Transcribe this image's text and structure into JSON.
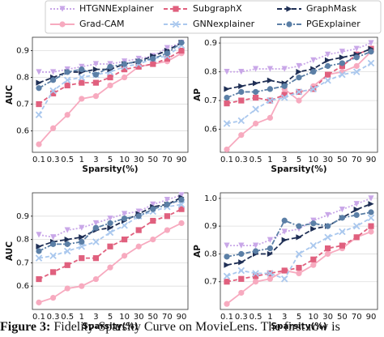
{
  "chart_data": [
    {
      "type": "line",
      "xlabel": "Sparsity(%)",
      "ylabel": "AUC",
      "categories": [
        "0.1",
        "0.3",
        "0.5",
        "1",
        "3",
        "5",
        "10",
        "30",
        "50",
        "70",
        "90"
      ],
      "ylim": [
        0.52,
        0.95
      ],
      "yticks": [
        0.6,
        0.7,
        0.8,
        0.9
      ],
      "grid": true,
      "series": [
        {
          "name": "HTGNNExplainer",
          "color": "#c9a7e8",
          "values": [
            0.82,
            0.82,
            0.83,
            0.84,
            0.85,
            0.85,
            0.86,
            0.87,
            0.88,
            0.91,
            0.93
          ]
        },
        {
          "name": "Grad-CAM",
          "color": "#f7aabf",
          "values": [
            0.55,
            0.61,
            0.66,
            0.72,
            0.73,
            0.77,
            0.8,
            0.84,
            0.85,
            0.86,
            0.89
          ]
        },
        {
          "name": "SubgraphX",
          "color": "#e0607e",
          "values": [
            0.7,
            0.74,
            0.77,
            0.78,
            0.78,
            0.8,
            0.83,
            0.84,
            0.85,
            0.87,
            0.9
          ]
        },
        {
          "name": "GNNexplainer",
          "color": "#aac8ee",
          "values": [
            0.66,
            0.75,
            0.79,
            0.8,
            0.81,
            0.82,
            0.84,
            0.85,
            0.87,
            0.88,
            0.92
          ]
        },
        {
          "name": "GraphMask",
          "color": "#1f2f55",
          "values": [
            0.78,
            0.8,
            0.82,
            0.82,
            0.83,
            0.83,
            0.85,
            0.86,
            0.88,
            0.9,
            0.93
          ]
        },
        {
          "name": "PGExplainer",
          "color": "#5b7fa6",
          "values": [
            0.76,
            0.79,
            0.82,
            0.83,
            0.81,
            0.84,
            0.85,
            0.86,
            0.87,
            0.89,
            0.93
          ]
        }
      ]
    },
    {
      "type": "line",
      "xlabel": "Sparsity(%)",
      "ylabel": "AP",
      "categories": [
        "0.1",
        "0.3",
        "0.5",
        "1",
        "3",
        "5",
        "10",
        "30",
        "50",
        "70",
        "90"
      ],
      "ylim": [
        0.52,
        0.92
      ],
      "yticks": [
        0.6,
        0.7,
        0.8,
        0.9
      ],
      "grid": true,
      "series": [
        {
          "name": "HTGNNExplainer",
          "color": "#c9a7e8",
          "values": [
            0.8,
            0.8,
            0.81,
            0.81,
            0.81,
            0.82,
            0.84,
            0.86,
            0.87,
            0.88,
            0.9
          ]
        },
        {
          "name": "Grad-CAM",
          "color": "#f7aabf",
          "values": [
            0.53,
            0.58,
            0.62,
            0.64,
            0.74,
            0.7,
            0.75,
            0.79,
            0.8,
            0.82,
            0.87
          ]
        },
        {
          "name": "SubgraphX",
          "color": "#e0607e",
          "values": [
            0.69,
            0.7,
            0.71,
            0.7,
            0.72,
            0.73,
            0.74,
            0.79,
            0.82,
            0.86,
            0.88
          ]
        },
        {
          "name": "GNNexplainer",
          "color": "#aac8ee",
          "values": [
            0.62,
            0.63,
            0.67,
            0.7,
            0.71,
            0.73,
            0.74,
            0.77,
            0.79,
            0.8,
            0.83
          ]
        },
        {
          "name": "GraphMask",
          "color": "#1f2f55",
          "values": [
            0.74,
            0.75,
            0.76,
            0.77,
            0.76,
            0.8,
            0.81,
            0.84,
            0.85,
            0.86,
            0.88
          ]
        },
        {
          "name": "PGExplainer",
          "color": "#5b7fa6",
          "values": [
            0.71,
            0.73,
            0.73,
            0.74,
            0.75,
            0.78,
            0.8,
            0.82,
            0.83,
            0.85,
            0.87
          ]
        }
      ]
    },
    {
      "type": "line",
      "xlabel": "Sparsity(%)",
      "ylabel": "AUC",
      "categories": [
        "0.1",
        "0.3",
        "0.5",
        "1",
        "3",
        "5",
        "10",
        "30",
        "50",
        "70",
        "90"
      ],
      "ylim": [
        0.5,
        1.0
      ],
      "yticks": [
        0.6,
        0.7,
        0.8,
        0.9
      ],
      "grid": true,
      "series": [
        {
          "name": "HTGNNExplainer",
          "color": "#c9a7e8",
          "values": [
            0.82,
            0.81,
            0.84,
            0.85,
            0.87,
            0.89,
            0.91,
            0.92,
            0.95,
            0.97,
            0.99
          ]
        },
        {
          "name": "Grad-CAM",
          "color": "#f7aabf",
          "values": [
            0.53,
            0.55,
            0.59,
            0.6,
            0.63,
            0.68,
            0.73,
            0.77,
            0.8,
            0.84,
            0.87
          ]
        },
        {
          "name": "SubgraphX",
          "color": "#e0607e",
          "values": [
            0.63,
            0.66,
            0.69,
            0.72,
            0.72,
            0.77,
            0.8,
            0.84,
            0.88,
            0.9,
            0.93
          ]
        },
        {
          "name": "GNNexplainer",
          "color": "#aac8ee",
          "values": [
            0.72,
            0.73,
            0.75,
            0.77,
            0.79,
            0.83,
            0.86,
            0.9,
            0.92,
            0.94,
            0.95
          ]
        },
        {
          "name": "GraphMask",
          "color": "#1f2f55",
          "values": [
            0.77,
            0.79,
            0.8,
            0.81,
            0.84,
            0.85,
            0.88,
            0.91,
            0.94,
            0.95,
            0.98
          ]
        },
        {
          "name": "PGExplainer",
          "color": "#5b7fa6",
          "values": [
            0.75,
            0.78,
            0.78,
            0.79,
            0.85,
            0.87,
            0.89,
            0.9,
            0.93,
            0.95,
            0.97
          ]
        }
      ]
    },
    {
      "type": "line",
      "xlabel": "Sparsity(%)",
      "ylabel": "AP",
      "categories": [
        "0.1",
        "0.3",
        "0.5",
        "1",
        "3",
        "5",
        "10",
        "30",
        "50",
        "70",
        "90"
      ],
      "ylim": [
        0.6,
        1.02
      ],
      "yticks": [
        0.7,
        0.8,
        0.9,
        {
          "value": 1,
          "label": "1.0"
        }
      ],
      "grid": true,
      "series": [
        {
          "name": "HTGNNExplainer",
          "color": "#c9a7e8",
          "values": [
            0.83,
            0.83,
            0.83,
            0.85,
            0.88,
            0.89,
            0.92,
            0.94,
            0.96,
            0.98,
            1.0
          ]
        },
        {
          "name": "Grad-CAM",
          "color": "#f7aabf",
          "values": [
            0.62,
            0.66,
            0.7,
            0.71,
            0.74,
            0.73,
            0.76,
            0.8,
            0.82,
            0.86,
            0.88
          ]
        },
        {
          "name": "SubgraphX",
          "color": "#e0607e",
          "values": [
            0.7,
            0.71,
            0.72,
            0.73,
            0.74,
            0.75,
            0.78,
            0.82,
            0.83,
            0.86,
            0.9
          ]
        },
        {
          "name": "GNNexplainer",
          "color": "#aac8ee",
          "values": [
            0.72,
            0.74,
            0.73,
            0.73,
            0.71,
            0.8,
            0.83,
            0.86,
            0.88,
            0.9,
            0.93
          ]
        },
        {
          "name": "GraphMask",
          "color": "#1f2f55",
          "values": [
            0.76,
            0.77,
            0.8,
            0.8,
            0.85,
            0.86,
            0.89,
            0.9,
            0.93,
            0.96,
            0.98
          ]
        },
        {
          "name": "PGExplainer",
          "color": "#5b7fa6",
          "values": [
            0.79,
            0.8,
            0.81,
            0.82,
            0.92,
            0.9,
            0.91,
            0.9,
            0.93,
            0.94,
            0.95
          ]
        }
      ]
    }
  ],
  "caption": {
    "label": "Figure 3:",
    "text": "Fidelity-Sparsity Curve on MovieLens. The first row is"
  }
}
